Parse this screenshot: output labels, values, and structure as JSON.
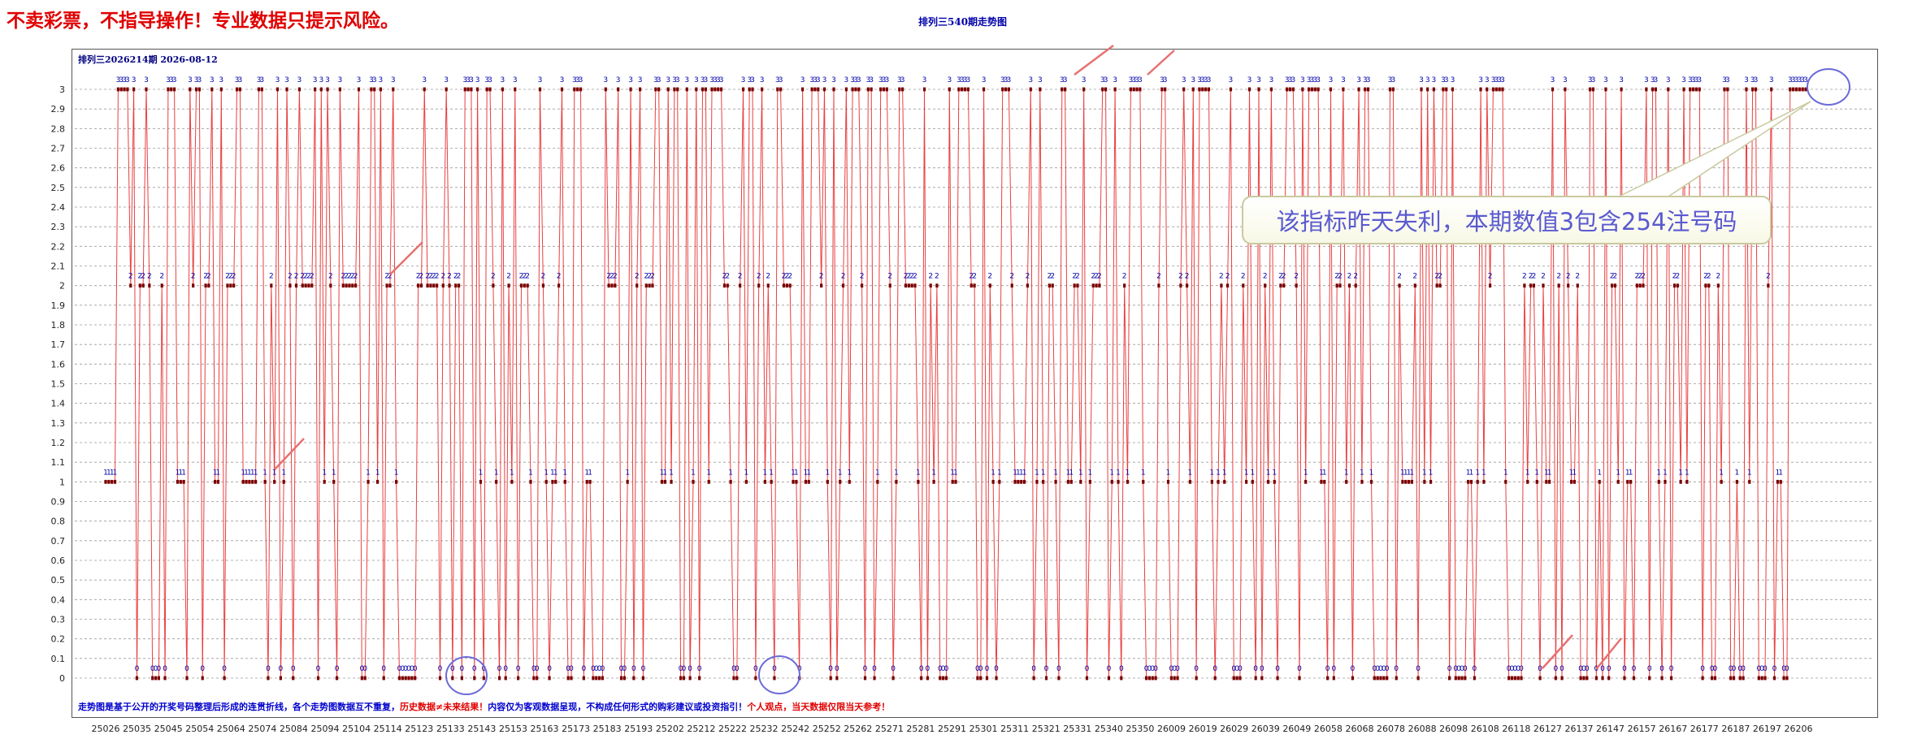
{
  "warning": "不卖彩票，不指导操作！专业数据只提示风险。",
  "chart_data": {
    "type": "line",
    "title": "排列三540期走势图",
    "subtitle": "排列三2026214期  2026-08-12",
    "ylim": [
      0,
      3
    ],
    "yticks": [
      "0",
      "0.1",
      "0.2",
      "0.3",
      "0.4",
      "0.5",
      "0.6",
      "0.7",
      "0.8",
      "0.9",
      "1",
      "1.1",
      "1.2",
      "1.3",
      "1.4",
      "1.5",
      "1.6",
      "1.7",
      "1.8",
      "1.9",
      "2",
      "2.1",
      "2.2",
      "2.3",
      "2.4",
      "2.5",
      "2.6",
      "2.7",
      "2.8",
      "2.9",
      "3"
    ],
    "grid": true,
    "x_tick_labels": [
      "25026",
      "25035",
      "25045",
      "25054",
      "25064",
      "25074",
      "25084",
      "25094",
      "25104",
      "25114",
      "25123",
      "25133",
      "25143",
      "25153",
      "25163",
      "25173",
      "25183",
      "25193",
      "25202",
      "25212",
      "25222",
      "25232",
      "25242",
      "25252",
      "25262",
      "25271",
      "25281",
      "25291",
      "25301",
      "25311",
      "25321",
      "25331",
      "25340",
      "25350",
      "26009",
      "26019",
      "26029",
      "26039",
      "26049",
      "26058",
      "26068",
      "26078",
      "26088",
      "26098",
      "26108",
      "26118",
      "26127",
      "26137",
      "26147",
      "26157",
      "26167",
      "26177",
      "26187",
      "26197",
      "26206"
    ],
    "series_color": "#e84040",
    "marker_color": "#7a0000",
    "label_color": "#0000aa",
    "values": [
      1,
      1,
      1,
      1,
      3,
      3,
      3,
      3,
      2,
      3,
      0,
      2,
      2,
      3,
      2,
      0,
      0,
      0,
      2,
      0,
      3,
      3,
      3,
      1,
      1,
      1,
      0,
      3,
      2,
      3,
      3,
      0,
      2,
      2,
      3,
      1,
      1,
      3,
      0,
      2,
      2,
      2,
      3,
      3,
      1,
      1,
      1,
      1,
      1,
      3,
      3,
      1,
      0,
      2,
      1,
      3,
      0,
      1,
      3,
      2,
      0,
      2,
      3,
      2,
      2,
      2,
      2,
      3,
      0,
      3,
      1,
      3,
      2,
      1,
      0,
      3,
      2,
      2,
      2,
      2,
      2,
      3,
      0,
      0,
      1,
      3,
      3,
      1,
      3,
      0,
      2,
      2,
      3,
      1,
      0,
      0,
      0,
      0,
      0,
      0,
      2,
      2,
      3,
      2,
      2,
      2,
      2,
      0,
      2,
      3,
      2,
      0,
      2,
      2,
      0,
      3,
      3,
      3,
      0,
      3,
      1,
      0,
      3,
      3,
      2,
      1,
      0,
      3,
      0,
      2,
      1,
      3,
      0,
      2,
      2,
      2,
      1,
      0,
      0,
      3,
      2,
      1,
      0,
      1,
      1,
      2,
      3,
      1,
      0,
      0,
      3,
      3,
      3,
      0,
      1,
      1,
      0,
      0,
      0,
      0,
      3,
      2,
      2,
      2,
      3,
      0,
      0,
      1,
      3,
      0,
      2,
      3,
      0,
      2,
      2,
      2,
      3,
      3,
      1,
      1,
      3,
      1,
      3,
      3,
      0,
      0,
      3,
      0,
      1,
      3,
      0,
      3,
      3,
      1,
      3,
      3,
      3,
      3,
      2,
      2,
      1,
      0,
      0,
      2,
      3,
      1,
      3,
      3,
      0,
      2,
      3,
      1,
      2,
      1,
      0,
      3,
      3,
      2,
      2,
      2,
      1,
      1,
      0,
      3,
      1,
      1,
      3,
      3,
      3,
      2,
      3,
      1,
      0,
      3,
      0,
      1,
      2,
      3,
      1,
      3,
      3,
      3,
      2,
      0,
      3,
      3,
      0,
      1,
      3,
      3,
      3,
      2,
      0,
      1,
      3,
      3,
      2,
      2,
      2,
      2,
      1,
      0,
      3,
      0,
      2,
      1,
      2,
      0,
      0,
      0,
      3,
      1,
      1,
      3,
      3,
      3,
      3,
      2,
      2,
      0,
      0,
      3,
      0,
      2,
      1,
      0,
      1,
      3,
      3,
      3,
      2,
      1,
      1,
      1,
      1,
      2,
      3,
      0,
      1,
      3,
      1,
      0,
      2,
      2,
      1,
      0,
      3,
      3,
      1,
      1,
      2,
      2,
      1,
      3,
      0,
      1,
      2,
      2,
      2,
      3,
      3,
      0,
      1,
      3,
      1,
      0,
      2,
      1,
      3,
      3,
      3,
      3,
      1,
      0,
      0,
      0,
      0,
      2,
      3,
      3,
      1,
      0,
      0,
      0,
      2,
      3,
      2,
      1,
      3,
      0,
      3,
      3,
      3,
      3,
      1,
      0,
      1,
      2,
      1,
      2,
      3,
      0,
      0,
      0,
      2,
      1,
      3,
      1,
      0,
      3,
      0,
      2,
      1,
      3,
      1,
      0,
      2,
      2,
      3,
      3,
      3,
      2,
      0,
      3,
      1,
      3,
      3,
      3,
      3,
      1,
      1,
      0,
      3,
      0,
      2,
      2,
      3,
      1,
      2,
      0,
      2,
      3,
      1,
      3,
      3,
      1,
      0,
      0,
      0,
      0,
      0,
      3,
      3,
      0,
      2,
      1,
      1,
      1,
      1,
      2,
      0,
      3,
      1,
      3,
      1,
      3,
      2,
      2,
      3,
      3,
      0,
      3,
      0,
      0,
      0,
      0,
      1,
      1,
      0,
      1,
      3,
      1,
      3,
      2,
      3,
      3,
      3,
      3,
      1,
      0,
      0,
      0,
      0,
      0,
      2,
      1,
      2,
      2,
      1,
      0,
      2,
      1,
      1,
      3,
      0,
      2,
      0,
      3,
      2,
      1,
      1,
      2,
      0,
      0,
      0,
      3,
      3,
      0,
      1,
      0,
      3,
      0,
      2,
      2,
      1,
      3,
      0,
      1,
      1,
      0,
      2,
      2,
      2,
      3,
      0,
      3,
      3,
      1,
      0,
      1,
      3,
      0,
      2,
      2,
      1,
      3,
      1,
      3,
      3,
      3,
      3,
      0,
      2,
      2,
      0,
      0,
      2,
      1,
      3,
      3,
      0,
      0,
      1,
      0,
      0,
      3,
      1,
      3,
      3,
      0,
      0,
      0,
      2,
      3,
      0,
      1,
      1,
      0,
      0,
      3,
      3,
      3,
      3,
      3,
      3
    ]
  },
  "footer": {
    "part1": "走势图是基于公开的开奖号码整理后形成的连贯折线，各个走势图数据互不重复，",
    "part2": "历史数据≠未来结果！",
    "part3": "内容仅为客观数据呈现，不构成任何形式的购彩建议或投资指引！",
    "part4": "个人观点，当天数据仅限当天参考！"
  },
  "callout": {
    "text": "该指标昨天失利，本期数值3包含254注号码"
  }
}
